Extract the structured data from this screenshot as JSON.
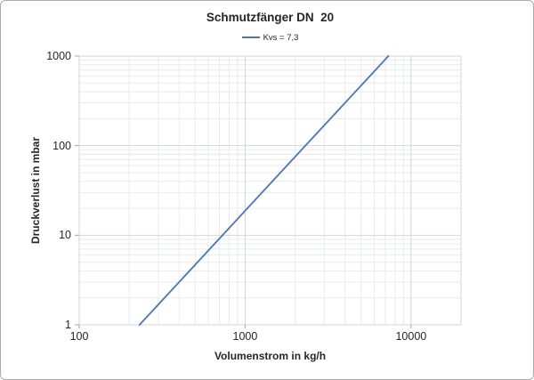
{
  "chart_data": {
    "type": "line",
    "title": "Schmutzfänger DN  20",
    "xlabel": "Volumenstrom in kg/h",
    "ylabel": "Druckverlust in mbar",
    "x_scale": "log",
    "y_scale": "log",
    "xlim": [
      100,
      20000
    ],
    "ylim": [
      1,
      1000
    ],
    "x_ticks": [
      100,
      1000,
      10000
    ],
    "y_ticks": [
      1,
      10,
      100,
      1000
    ],
    "grid": {
      "major": true,
      "minor": true
    },
    "legend": {
      "position": "top-center",
      "entries": [
        "Kvs = 7,3"
      ]
    },
    "series": [
      {
        "name": "Kvs = 7,3",
        "color": "#4C74B9",
        "points": [
          {
            "x": 230.9,
            "y": 1
          },
          {
            "x": 730.2,
            "y": 10
          },
          {
            "x": 2308.7,
            "y": 100
          },
          {
            "x": 7300,
            "y": 1000
          }
        ]
      }
    ]
  },
  "legend": {
    "label": "Kvs = 7,3"
  },
  "colors": {
    "series_blue": "#4C74B9",
    "grid_major": "#d2d5db",
    "grid_minor": "#e8eaee",
    "axis_tick": "#a6a6a6",
    "text": "#262626",
    "frame_border": "#ababab"
  }
}
